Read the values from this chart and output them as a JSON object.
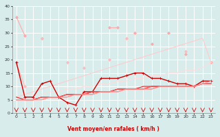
{
  "series": [
    {
      "name": "rafales_line1",
      "color": "#ffaaaa",
      "linewidth": 0.8,
      "marker": "D",
      "markersize": 2.0,
      "y": [
        36,
        29,
        null,
        28,
        null,
        null,
        null,
        null,
        null,
        null,
        null,
        32,
        32,
        null,
        30,
        null,
        26,
        null,
        30,
        null,
        22,
        null,
        null,
        19
      ]
    },
    {
      "name": "rafales_line2",
      "color": "#ffbbbb",
      "linewidth": 0.8,
      "marker": "D",
      "markersize": 2.0,
      "y": [
        19,
        10,
        null,
        28,
        null,
        null,
        19,
        null,
        17,
        null,
        null,
        20,
        null,
        28,
        null,
        null,
        null,
        null,
        null,
        null,
        23,
        null,
        null,
        19
      ]
    },
    {
      "name": "diagonal_upper",
      "color": "#ffcccc",
      "linewidth": 0.8,
      "marker": null,
      "markersize": 0,
      "y": [
        6,
        7,
        8,
        9,
        10,
        11,
        12,
        13,
        14,
        15,
        16,
        17,
        18,
        19,
        20,
        21,
        22,
        23,
        24,
        25,
        26,
        27,
        28,
        19
      ]
    },
    {
      "name": "diagonal_lower",
      "color": "#ffdddd",
      "linewidth": 0.8,
      "marker": null,
      "markersize": 0,
      "y": [
        6,
        6,
        7,
        7,
        8,
        8,
        9,
        9,
        10,
        10,
        11,
        11,
        12,
        12,
        13,
        13,
        14,
        14,
        15,
        15,
        16,
        16,
        17,
        19
      ]
    },
    {
      "name": "moy_marker",
      "color": "#cc0000",
      "linewidth": 1.0,
      "marker": "+",
      "markersize": 3.5,
      "y": [
        19,
        6,
        6,
        11,
        12,
        6,
        4,
        3,
        8,
        8,
        13,
        13,
        13,
        14,
        15,
        15,
        13,
        13,
        12,
        11,
        11,
        10,
        12,
        12
      ]
    },
    {
      "name": "moy_line1",
      "color": "#dd2222",
      "linewidth": 0.8,
      "marker": null,
      "markersize": 0,
      "y": [
        6,
        5,
        5,
        6,
        6,
        6,
        7,
        7,
        7,
        8,
        8,
        8,
        9,
        9,
        9,
        10,
        10,
        10,
        10,
        10,
        10,
        10,
        11,
        11
      ]
    },
    {
      "name": "moy_line2",
      "color": "#ee3333",
      "linewidth": 0.8,
      "marker": null,
      "markersize": 0,
      "y": [
        5,
        5,
        5,
        6,
        6,
        6,
        7,
        7,
        7,
        8,
        8,
        8,
        9,
        9,
        9,
        9,
        10,
        10,
        10,
        10,
        10,
        10,
        11,
        11
      ]
    },
    {
      "name": "moy_line3",
      "color": "#ff5555",
      "linewidth": 0.8,
      "marker": null,
      "markersize": 0,
      "y": [
        5,
        5,
        5,
        6,
        6,
        6,
        7,
        7,
        7,
        8,
        8,
        8,
        9,
        9,
        9,
        9,
        10,
        10,
        10,
        10,
        10,
        10,
        11,
        11
      ]
    },
    {
      "name": "moy_line4",
      "color": "#ff7777",
      "linewidth": 0.8,
      "marker": null,
      "markersize": 0,
      "y": [
        5,
        5,
        5,
        5,
        6,
        6,
        6,
        7,
        7,
        7,
        8,
        8,
        8,
        9,
        9,
        9,
        9,
        10,
        10,
        10,
        10,
        10,
        11,
        11
      ]
    },
    {
      "name": "moy_line5",
      "color": "#ff9999",
      "linewidth": 0.8,
      "marker": null,
      "markersize": 0,
      "y": [
        5,
        5,
        5,
        5,
        6,
        6,
        6,
        7,
        7,
        7,
        8,
        8,
        8,
        9,
        9,
        9,
        9,
        10,
        10,
        10,
        10,
        10,
        11,
        12
      ]
    }
  ],
  "xlabel": "Vent moyen/en rafales ( km/h )",
  "xlim": [
    -0.5,
    23.5
  ],
  "ylim": [
    0,
    40
  ],
  "yticks": [
    0,
    5,
    10,
    15,
    20,
    25,
    30,
    35,
    40
  ],
  "xticks": [
    0,
    1,
    2,
    3,
    4,
    5,
    6,
    7,
    8,
    9,
    10,
    11,
    12,
    13,
    14,
    15,
    16,
    17,
    18,
    19,
    20,
    21,
    22,
    23
  ],
  "bg_color": "#d8ecec",
  "grid_color": "#ffffff",
  "arrow_color": "#cc2222",
  "xlabel_color": "#cc0000"
}
